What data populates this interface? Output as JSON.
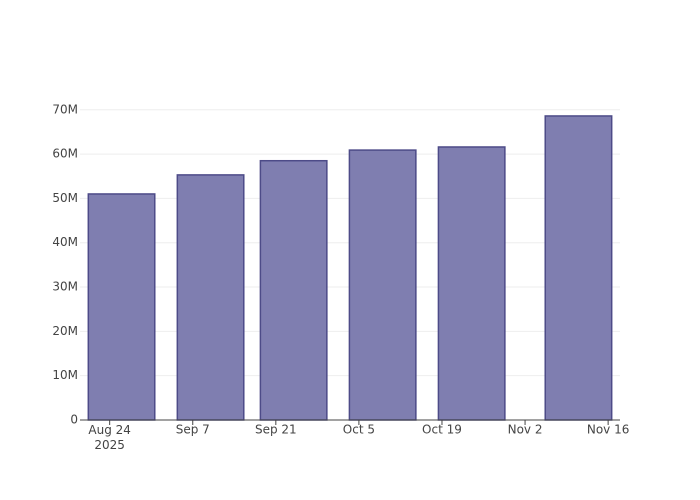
{
  "chart_data": {
    "type": "bar",
    "x": [
      "2025-08-26",
      "2025-09-10",
      "2025-09-24",
      "2025-10-09",
      "2025-10-24",
      "2025-11-11"
    ],
    "values": [
      51000000,
      55300000,
      58500000,
      60900000,
      61600000,
      68600000
    ],
    "color": "#7f7eb0",
    "line_color": "#4d4b88",
    "xlim": [
      "2025-08-19",
      "2025-11-18"
    ],
    "xticks": [
      {
        "value": "2025-08-24",
        "label": "Aug 24\n2025"
      },
      {
        "value": "2025-09-07",
        "label": "Sep 7"
      },
      {
        "value": "2025-09-21",
        "label": "Sep 21"
      },
      {
        "value": "2025-10-05",
        "label": "Oct 5"
      },
      {
        "value": "2025-10-19",
        "label": "Oct 19"
      },
      {
        "value": "2025-11-02",
        "label": "Nov 2"
      },
      {
        "value": "2025-11-16",
        "label": "Nov 16"
      }
    ],
    "ylim": [
      0,
      72200000
    ],
    "yticks": [
      0,
      {
        "value": 10000000,
        "label": "10M"
      },
      {
        "value": 20000000,
        "label": "20M"
      },
      {
        "value": 30000000,
        "label": "30M"
      },
      {
        "value": 40000000,
        "label": "40M"
      },
      {
        "value": 50000000,
        "label": "50M"
      },
      {
        "value": 60000000,
        "label": "60M"
      },
      {
        "value": 70000000,
        "label": "70M"
      }
    ],
    "grid": true
  }
}
